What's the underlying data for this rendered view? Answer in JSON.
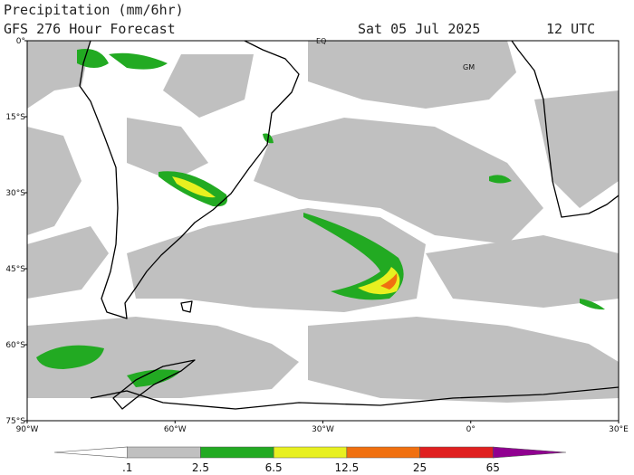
{
  "header": {
    "title": "Precipitation (mm/6hr)",
    "subtitle": "GFS 276 Hour Forecast",
    "date": "Sat 05 Jul 2025",
    "time": "12 UTC"
  },
  "map": {
    "x_labels": [
      "90°W",
      "60°W",
      "30°W",
      "0°",
      "30°E"
    ],
    "y_labels": [
      "0°",
      "15°S",
      "30°S",
      "45°S",
      "60°S",
      "75°S"
    ],
    "annotations": [
      "EQ",
      "GM"
    ]
  },
  "colorbar": {
    "levels": [
      ".1",
      "2.5",
      "6.5",
      "12.5",
      "25",
      "65"
    ],
    "colors": [
      "#ffffff",
      "#c0c0c0",
      "#22aa22",
      "#e8f020",
      "#f07010",
      "#e02020",
      "#900090"
    ]
  }
}
